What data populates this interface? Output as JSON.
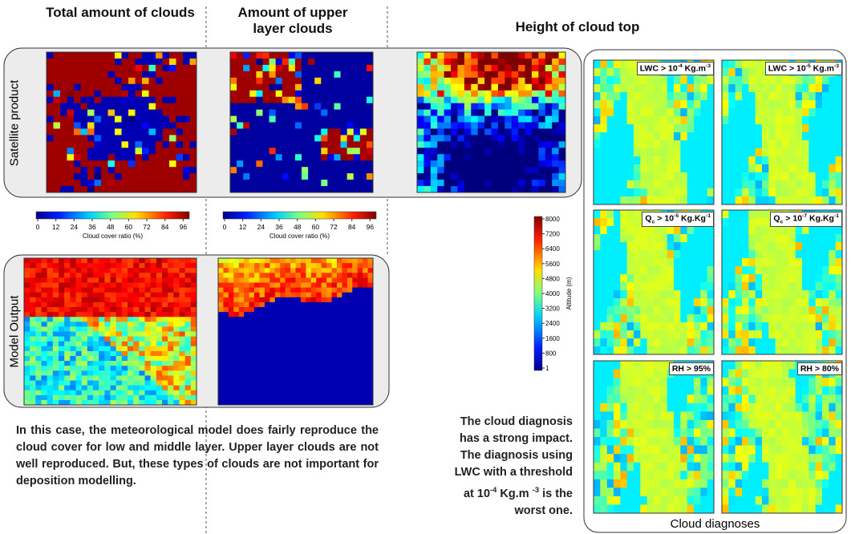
{
  "headings": {
    "total": "Total amount of clouds",
    "upper": "Amount of upper layer clouds",
    "height": "Height of cloud top"
  },
  "row_labels": {
    "satellite": "Satellite product",
    "model": "Model Output"
  },
  "colorbars": [
    {
      "ticks": [
        0,
        12,
        24,
        36,
        48,
        60,
        72,
        84,
        96
      ],
      "label": "Cloud cover ratio (%)"
    },
    {
      "ticks": [
        0,
        12,
        24,
        36,
        48,
        60,
        72,
        84,
        96
      ],
      "label": "Cloud cover ratio (%)"
    },
    {
      "ticks": [
        8000,
        7200,
        6400,
        5600,
        4800,
        4000,
        3200,
        2400,
        1600,
        800,
        1
      ],
      "label": "Altitude (m)"
    }
  ],
  "diagnoses": {
    "caption": "Cloud diagnoses",
    "panels": [
      [
        {
          "text": "LWC > 10"
        },
        {
          "sup": "-4"
        },
        {
          "text": " Kg.m"
        },
        {
          "sup": "-3"
        }
      ],
      [
        {
          "text": "LWC > 10"
        },
        {
          "sup": "-5"
        },
        {
          "text": " Kg.m"
        },
        {
          "sup": "-3"
        }
      ],
      [
        {
          "text": "Q"
        },
        {
          "sub": "c"
        },
        {
          "text": " > 10"
        },
        {
          "sup": "-5"
        },
        {
          "text": " Kg.Kg"
        },
        {
          "sup": "-1"
        }
      ],
      [
        {
          "text": "Q"
        },
        {
          "sub": "c"
        },
        {
          "text": " > 10"
        },
        {
          "sup": "-7"
        },
        {
          "text": " Kg.Kg"
        },
        {
          "sup": "-1"
        }
      ],
      [
        {
          "text": "RH > 95%"
        }
      ],
      [
        {
          "text": "RH > 80%"
        }
      ]
    ]
  },
  "conclusion": [
    [
      {
        "text": "The cloud diagnosis"
      }
    ],
    [
      {
        "text": "has a strong impact."
      }
    ],
    [
      {
        "text": "The diagnosis using"
      }
    ],
    [
      {
        "text": "LWC with a threshold"
      }
    ],
    [
      {
        "text": "at 10"
      },
      {
        "sup": "-4"
      },
      {
        "text": " Kg.m "
      },
      {
        "sup": "-3"
      },
      {
        "text": " is the"
      }
    ],
    [
      {
        "text": "worst one."
      }
    ]
  ],
  "paragraph": "In this case, the meteorological model does fairly reproduce the cloud cover for low and middle layer. Upper layer clouds are not well reproduced. But, these types of clouds are not important for deposition modelling."
}
